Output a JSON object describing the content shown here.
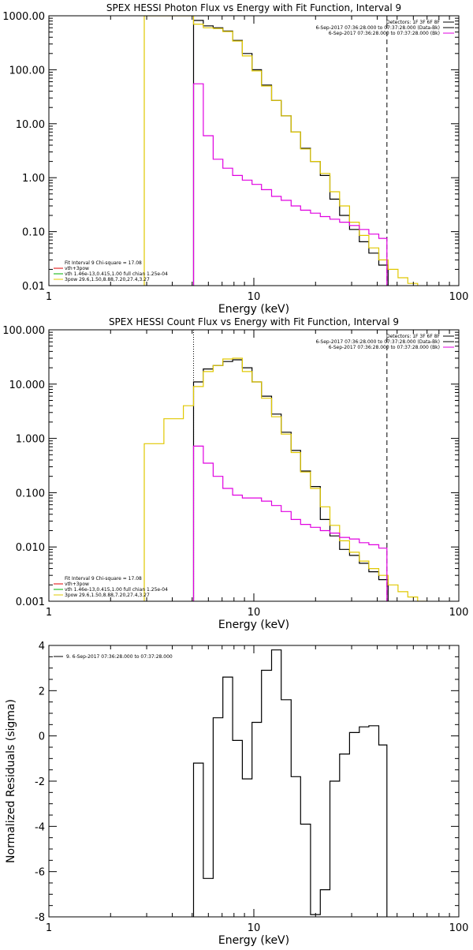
{
  "chart_data": [
    {
      "type": "line",
      "title": "SPEX HESSI Photon Flux vs Energy with Fit Function, Interval 9",
      "xlabel": "Energy (keV)",
      "ylabel": "",
      "xscale": "log",
      "yscale": "log",
      "xlim": [
        1,
        100
      ],
      "ylim": [
        0.01,
        1000
      ],
      "x_ticks": [
        {
          "v": 1,
          "label": "1"
        },
        {
          "v": 10,
          "label": "10"
        },
        {
          "v": 100,
          "label": "100"
        }
      ],
      "y_ticks": [
        {
          "v": 0.01,
          "label": "0.01"
        },
        {
          "v": 0.1,
          "label": "0.10"
        },
        {
          "v": 1,
          "label": "1.00"
        },
        {
          "v": 10,
          "label": "10.00"
        },
        {
          "v": 100,
          "label": "100.00"
        },
        {
          "v": 1000,
          "label": "1000.00"
        }
      ],
      "vlines": [
        {
          "x": 5.08,
          "color": "#e000e0",
          "style": "solid"
        },
        {
          "x": 44.6,
          "color": "#000000",
          "style": "dashed"
        }
      ],
      "legend_top": {
        "placement": "top-right",
        "lines": [
          {
            "text": "Detectors: 1F 3F 6F 8F",
            "color": null
          },
          {
            "text": "6-Sep-2017 07:36:28.000 to 07:37:28.000 (Data-Bk)",
            "color": "#000000"
          },
          {
            "text": "6-Sep-2017 07:36:28.000 to 07:37:28.000 (Bk)",
            "color": "#e000e0"
          }
        ]
      },
      "legend_bottom": {
        "placement": "bottom-left",
        "lines": [
          {
            "text": "Fit Interval 9   Chi-square = 17.08",
            "color": null
          },
          {
            "text": "vth+3pow",
            "color": "#e00000"
          },
          {
            "text": "vth 1.46e-13,0.415,1.00  full chian 1.25e-04",
            "color": "#00b000"
          },
          {
            "text": "3pow 29.6,1.50,8.88,7.20,27.4,3.27",
            "color": "#e0c800"
          }
        ]
      },
      "series": [
        {
          "color": "#000000",
          "edges": [
            5.08,
            5.67,
            6.33,
            7.06,
            7.88,
            8.79,
            9.8,
            10.9,
            12.2,
            13.6,
            15.2,
            16.9,
            18.9,
            21.1,
            23.5,
            26.2,
            29.3,
            32.7,
            36.4,
            40.7,
            45.2
          ],
          "values": [
            820,
            650,
            600,
            520,
            350,
            200,
            100,
            52,
            27,
            14,
            7,
            3.5,
            2.0,
            1.1,
            0.4,
            0.2,
            0.11,
            0.065,
            0.04,
            0.024
          ]
        },
        {
          "color": "#e0c800",
          "edges": [
            2.92,
            3.26,
            3.64,
            4.06,
            4.53,
            5.08,
            5.67,
            6.33,
            7.06,
            7.88,
            8.79,
            9.8,
            10.9,
            12.2,
            13.6,
            15.2,
            16.9,
            18.9,
            21.1,
            23.5,
            26.2,
            29.3,
            32.7,
            36.4,
            40.7,
            45.2,
            50.5,
            56.4,
            63.0
          ],
          "values": [
            1000,
            1000,
            1000,
            1000,
            1000,
            700,
            600,
            580,
            510,
            340,
            180,
            95,
            50,
            27,
            14,
            7,
            3.4,
            2.0,
            1.2,
            0.55,
            0.3,
            0.15,
            0.085,
            0.05,
            0.03,
            0.02,
            0.014,
            0.011,
            0.01
          ]
        },
        {
          "color": "#e000e0",
          "edges": [
            5.08,
            5.67,
            6.33,
            7.06,
            7.88,
            8.79,
            9.8,
            10.9,
            12.2,
            13.6,
            15.2,
            16.9,
            18.9,
            21.1,
            23.5,
            26.2,
            29.3,
            32.7,
            36.4,
            40.7,
            44.6
          ],
          "values": [
            55,
            6,
            2.2,
            1.5,
            1.1,
            0.9,
            0.75,
            0.6,
            0.45,
            0.38,
            0.3,
            0.25,
            0.22,
            0.19,
            0.17,
            0.15,
            0.13,
            0.11,
            0.09,
            0.075
          ]
        }
      ]
    },
    {
      "type": "line",
      "title": "SPEX HESSI Count Flux vs Energy with Fit Function, Interval 9",
      "xlabel": "Energy (keV)",
      "ylabel": "",
      "xscale": "log",
      "yscale": "log",
      "xlim": [
        1,
        100
      ],
      "ylim": [
        0.001,
        100
      ],
      "x_ticks": [
        {
          "v": 1,
          "label": "1"
        },
        {
          "v": 10,
          "label": "10"
        },
        {
          "v": 100,
          "label": "100"
        }
      ],
      "y_ticks": [
        {
          "v": 0.001,
          "label": "0.001"
        },
        {
          "v": 0.01,
          "label": "0.010"
        },
        {
          "v": 0.1,
          "label": "0.100"
        },
        {
          "v": 1,
          "label": "1.000"
        },
        {
          "v": 10,
          "label": "10.000"
        },
        {
          "v": 100,
          "label": "100.000"
        }
      ],
      "vlines": [
        {
          "x": 5.08,
          "color": "#000000",
          "style": "dotted"
        },
        {
          "x": 44.6,
          "color": "#000000",
          "style": "dashed"
        }
      ],
      "legend_top": {
        "placement": "top-right",
        "lines": [
          {
            "text": "Detectors: 1F 3F 6F 8F",
            "color": null
          },
          {
            "text": "6-Sep-2017 07:36:28.000 to 07:37:28.000 (Data-Bk)",
            "color": "#000000"
          },
          {
            "text": "6-Sep-2017 07:36:28.000 to 07:37:28.000 (Bk)",
            "color": "#e000e0"
          }
        ]
      },
      "legend_bottom": {
        "placement": "bottom-left",
        "lines": [
          {
            "text": "Fit Interval 9   Chi-square = 17.08",
            "color": null
          },
          {
            "text": "vth+3pow",
            "color": "#e00000"
          },
          {
            "text": "vth 1.46e-13,0.415,1.00  full chian 1.25e-04",
            "color": "#00b000"
          },
          {
            "text": "3pow 29.6,1.50,8.88,7.20,27.4,3.27",
            "color": "#e0c800"
          }
        ]
      },
      "series": [
        {
          "color": "#000000",
          "edges": [
            5.08,
            5.67,
            6.33,
            7.06,
            7.88,
            8.79,
            9.8,
            10.9,
            12.2,
            13.6,
            15.2,
            16.9,
            18.9,
            21.1,
            23.5,
            26.2,
            29.3,
            32.7,
            36.4,
            40.7,
            45.2
          ],
          "values": [
            11,
            19,
            22,
            26,
            28,
            20,
            11,
            6,
            2.8,
            1.3,
            0.6,
            0.25,
            0.13,
            0.032,
            0.016,
            0.009,
            0.007,
            0.005,
            0.0035,
            0.0025
          ]
        },
        {
          "color": "#e0c800",
          "edges": [
            2.92,
            3.64,
            4.53,
            5.08,
            5.67,
            6.33,
            7.06,
            7.88,
            8.79,
            9.8,
            10.9,
            12.2,
            13.6,
            15.2,
            16.9,
            18.9,
            21.1,
            23.5,
            26.2,
            29.3,
            32.7,
            36.4,
            40.7,
            45.2,
            50.5,
            56.4,
            63.0,
            70.3
          ],
          "values": [
            0.8,
            2.3,
            4,
            9,
            17,
            22,
            29,
            30,
            17,
            11,
            5.5,
            2.5,
            1.2,
            0.55,
            0.24,
            0.12,
            0.055,
            0.025,
            0.013,
            0.008,
            0.0055,
            0.004,
            0.003,
            0.002,
            0.0015,
            0.0012,
            0.001,
            0.001
          ]
        },
        {
          "color": "#e000e0",
          "edges": [
            5.08,
            5.67,
            6.33,
            7.06,
            7.88,
            8.79,
            9.8,
            10.9,
            12.2,
            13.6,
            15.2,
            16.9,
            18.9,
            21.1,
            23.5,
            26.2,
            29.3,
            32.7,
            36.4,
            40.7,
            44.6
          ],
          "values": [
            0.72,
            0.35,
            0.2,
            0.12,
            0.09,
            0.08,
            0.08,
            0.07,
            0.058,
            0.045,
            0.032,
            0.026,
            0.023,
            0.02,
            0.018,
            0.015,
            0.014,
            0.012,
            0.011,
            0.0095
          ]
        }
      ]
    },
    {
      "type": "line",
      "title": "",
      "xlabel": "Energy (keV)",
      "ylabel": "Normalized Residuals (sigma)",
      "xscale": "log",
      "yscale": "linear",
      "xlim": [
        1,
        100
      ],
      "ylim": [
        -8,
        4
      ],
      "x_ticks": [
        {
          "v": 1,
          "label": "1"
        },
        {
          "v": 10,
          "label": "10"
        },
        {
          "v": 100,
          "label": "100"
        }
      ],
      "y_ticks": [
        {
          "v": -8,
          "label": "-8"
        },
        {
          "v": -6,
          "label": "-6"
        },
        {
          "v": -4,
          "label": "-4"
        },
        {
          "v": -2,
          "label": "-2"
        },
        {
          "v": 0,
          "label": "0"
        },
        {
          "v": 2,
          "label": "2"
        },
        {
          "v": 4,
          "label": "4"
        }
      ],
      "vlines": [],
      "legend_top": {
        "placement": "top-left",
        "lines": [
          {
            "text": "9. 6-Sep-2017 07:36:28.000 to 07:37:28.000",
            "color": "#000000"
          }
        ]
      },
      "legend_bottom": {
        "placement": "bottom-left",
        "lines": []
      },
      "series": [
        {
          "color": "#000000",
          "edges": [
            5.08,
            5.67,
            6.33,
            7.06,
            7.88,
            8.79,
            9.8,
            10.9,
            12.2,
            13.6,
            15.2,
            16.9,
            18.9,
            21.1,
            23.5,
            26.2,
            29.3,
            32.7,
            36.4,
            40.7,
            44.6
          ],
          "values": [
            -1.2,
            -6.3,
            0.8,
            2.6,
            -0.2,
            -1.9,
            0.6,
            2.9,
            3.8,
            1.6,
            -1.8,
            -3.9,
            -7.9,
            -6.8,
            -2.0,
            -0.8,
            0.15,
            0.4,
            0.45,
            -0.4
          ]
        }
      ]
    }
  ]
}
